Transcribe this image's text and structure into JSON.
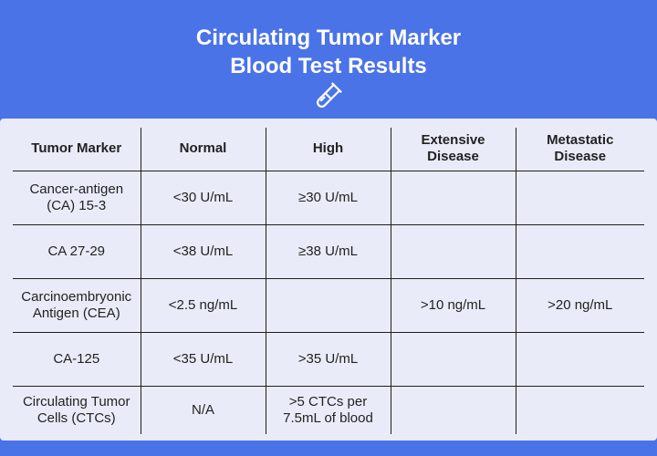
{
  "header": {
    "title_line1": "Circulating Tumor Marker",
    "title_line2": "Blood Test Results",
    "icon": "test-tube-icon"
  },
  "table": {
    "columns": [
      "Tumor Marker",
      "Normal",
      "High",
      "Extensive Disease",
      "Metastatic Disease"
    ],
    "rows": [
      [
        "Cancer-antigen (CA) 15-3",
        "<30 U/mL",
        "≥30 U/mL",
        "",
        ""
      ],
      [
        "CA 27-29",
        "<38 U/mL",
        "≥38 U/mL",
        "",
        ""
      ],
      [
        "Carcinoembryonic Antigen (CEA)",
        "<2.5 ng/mL",
        "",
        ">10 ng/mL",
        ">20 ng/mL"
      ],
      [
        "CA-125",
        "<35 U/mL",
        ">35 U/mL",
        "",
        ""
      ],
      [
        "Circulating Tumor Cells (CTCs)",
        "N/A",
        ">5 CTCs per 7.5mL of blood",
        "",
        ""
      ]
    ]
  },
  "colors": {
    "background": "#4a73e8",
    "card": "#e9ecf8",
    "text": "#222222",
    "title": "#ffffff"
  }
}
